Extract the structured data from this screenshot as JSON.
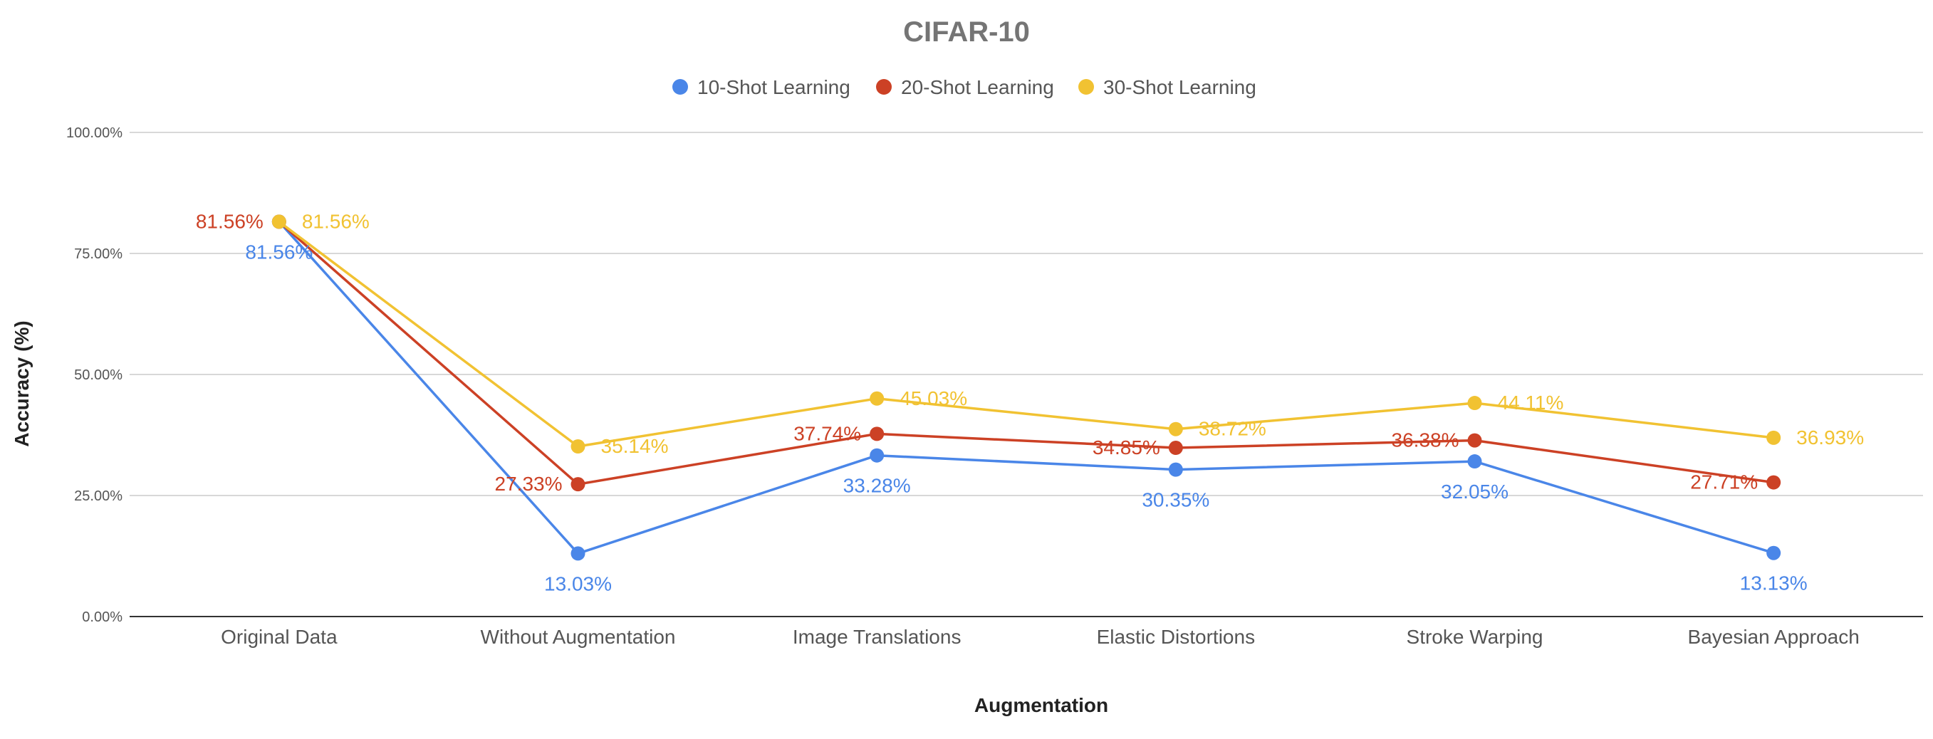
{
  "chart_data": {
    "type": "line",
    "title": "CIFAR-10",
    "xlabel": "Augmentation",
    "ylabel": "Accuracy (%)",
    "categories": [
      "Original Data",
      "Without Augmentation",
      "Image Translations",
      "Elastic Distortions",
      "Stroke Warping",
      "Bayesian Approach"
    ],
    "ylim": [
      0,
      100
    ],
    "yticks": [
      0,
      25,
      50,
      75,
      100
    ],
    "ytick_labels": [
      "0.00%",
      "25.00%",
      "50.00%",
      "75.00%",
      "100.00%"
    ],
    "grid": true,
    "legend_position": "top",
    "series": [
      {
        "name": "10-Shot Learning",
        "color": "#4a86e8",
        "values": [
          81.56,
          13.03,
          33.28,
          30.35,
          32.05,
          13.13
        ],
        "labels": [
          "81.56%",
          "13.03%",
          "33.28%",
          "30.35%",
          "32.05%",
          "13.13%"
        ]
      },
      {
        "name": "20-Shot Learning",
        "color": "#cc4125",
        "values": [
          81.56,
          27.33,
          37.74,
          34.85,
          36.38,
          27.71
        ],
        "labels": [
          "81.56%",
          "27.33%",
          "37.74%",
          "34.85%",
          "36.38%",
          "27.71%"
        ]
      },
      {
        "name": "30-Shot Learning",
        "color": "#f1c232",
        "values": [
          81.56,
          35.14,
          45.03,
          38.72,
          44.11,
          36.93
        ],
        "labels": [
          "81.56%",
          "35.14%",
          "45.03%",
          "38.72%",
          "44.11%",
          "36.93%"
        ]
      }
    ]
  }
}
